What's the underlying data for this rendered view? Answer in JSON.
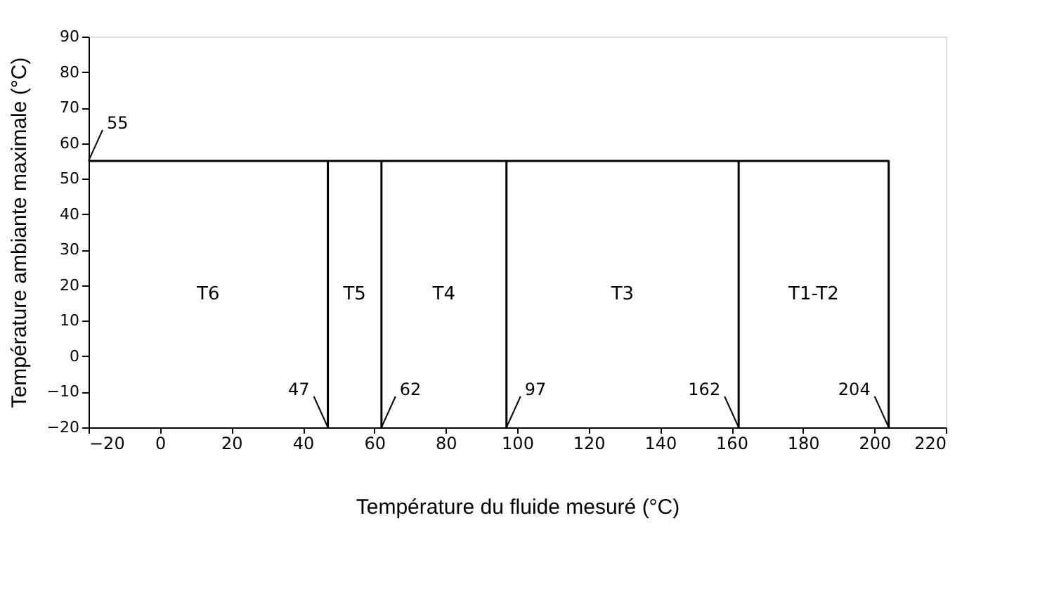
{
  "chart_data": {
    "type": "line",
    "xlabel": "Température du fluide mesuré (°C)",
    "ylabel": "Température ambiante maximale (°C)",
    "xlim": [
      -20,
      220
    ],
    "xticks": [
      -20,
      0,
      20,
      40,
      60,
      80,
      100,
      120,
      140,
      160,
      180,
      200,
      220
    ],
    "ylim": [
      -20,
      90
    ],
    "yticks": [
      -20,
      -10,
      0,
      10,
      20,
      30,
      40,
      50,
      60,
      70,
      80,
      90
    ],
    "grid": false,
    "marker": "none",
    "line_style": "solid",
    "series": [
      {
        "color": "#000000",
        "x": [
          -20,
          204,
          204
        ],
        "values": [
          55,
          55,
          -20
        ]
      },
      {
        "color": "#000000",
        "x": [
          47,
          47
        ],
        "values": [
          -20,
          55
        ]
      },
      {
        "color": "#000000",
        "x": [
          62,
          62
        ],
        "values": [
          -20,
          55
        ]
      },
      {
        "color": "#000000",
        "x": [
          97,
          97
        ],
        "values": [
          -20,
          55
        ]
      },
      {
        "color": "#000000",
        "x": [
          162,
          162
        ],
        "values": [
          -20,
          55
        ]
      }
    ],
    "annotations": [
      {
        "text": "55",
        "x": -20,
        "y": 55
      },
      {
        "text": "47",
        "x": 47,
        "y": -20
      },
      {
        "text": "62",
        "x": 62,
        "y": -20
      },
      {
        "text": "97",
        "x": 97,
        "y": -20
      },
      {
        "text": "162",
        "x": 162,
        "y": -20
      },
      {
        "text": "204",
        "x": 204,
        "y": -20
      },
      "T6",
      "T5",
      "T4",
      "T3",
      "T1-T2"
    ]
  }
}
